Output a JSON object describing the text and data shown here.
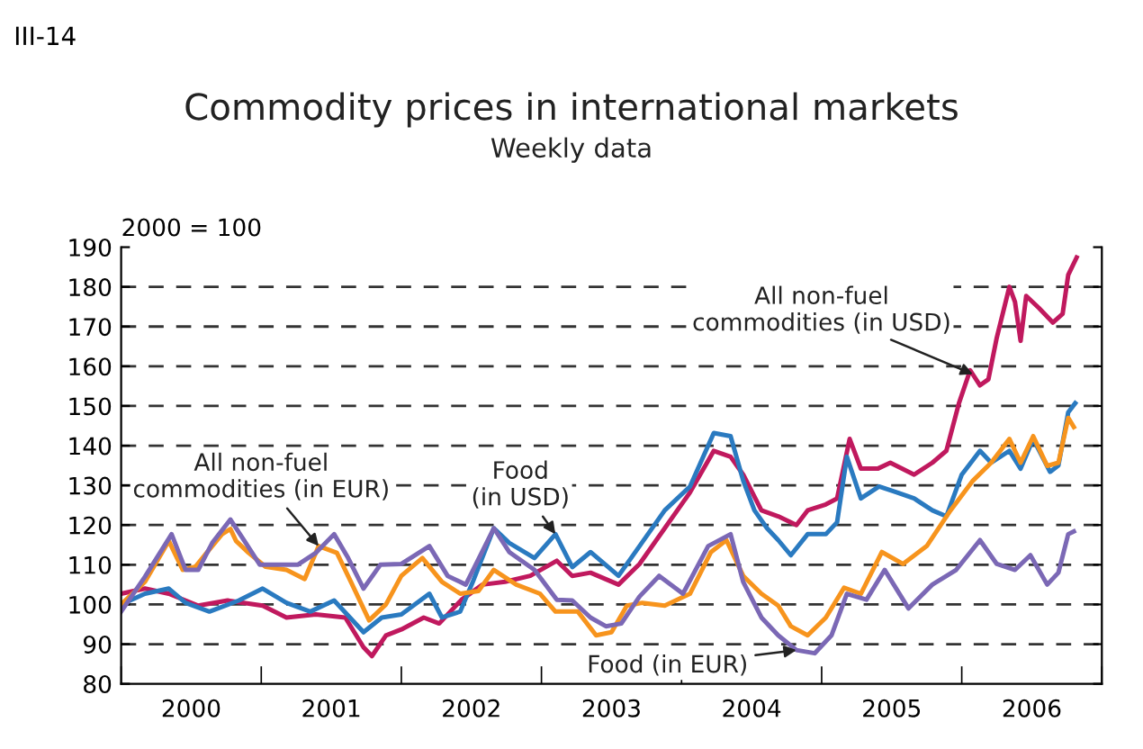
{
  "chart_data": {
    "type": "line",
    "title": "Commodity prices in international markets",
    "subtitle": "Weekly data",
    "ylabel": "2000 = 100",
    "xlim": [
      2000,
      2007
    ],
    "ylim": [
      80,
      190
    ],
    "yticks": [
      80,
      90,
      100,
      110,
      120,
      130,
      140,
      150,
      160,
      170,
      180,
      190
    ],
    "xticks": [
      {
        "value": 2000,
        "label": null
      },
      {
        "value": 2000.5,
        "label": "2000"
      },
      {
        "value": 2001,
        "label": null
      },
      {
        "value": 2001.5,
        "label": "2001"
      },
      {
        "value": 2002,
        "label": null
      },
      {
        "value": 2002.5,
        "label": "2002"
      },
      {
        "value": 2003,
        "label": null
      },
      {
        "value": 2003.5,
        "label": "2003"
      },
      {
        "value": 2004,
        "label": null
      },
      {
        "value": 2004.5,
        "label": "2004"
      },
      {
        "value": 2005,
        "label": null
      },
      {
        "value": 2005.5,
        "label": "2005"
      },
      {
        "value": 2006,
        "label": null
      },
      {
        "value": 2006.5,
        "label": "2006"
      },
      {
        "value": 2007,
        "label": null
      }
    ],
    "grid": "y",
    "legend": false,
    "line_style": "solid",
    "series": [
      {
        "color": "#c0195e",
        "x": [
          2000.0,
          2000.17,
          2000.34,
          2000.55,
          2000.76,
          2001.01,
          2001.18,
          2001.39,
          2001.6,
          2001.73,
          2001.79,
          2001.89,
          2002.0,
          2002.16,
          2002.27,
          2002.43,
          2002.58,
          2002.74,
          2002.92,
          2003.11,
          2003.22,
          2003.35,
          2003.55,
          2003.7,
          2003.88,
          2004.06,
          2004.23,
          2004.35,
          2004.44,
          2004.57,
          2004.69,
          2004.82,
          2004.9,
          2005.03,
          2005.11,
          2005.2,
          2005.28,
          2005.4,
          2005.49,
          2005.66,
          2005.79,
          2005.89,
          2005.98,
          2006.06,
          2006.13,
          2006.19,
          2006.25,
          2006.34,
          2006.38,
          2006.42,
          2006.46,
          2006.55,
          2006.65,
          2006.72,
          2006.76,
          2006.82
        ],
        "values": [
          102.7,
          104,
          102.7,
          99.7,
          101,
          99.7,
          96.7,
          97.5,
          96.7,
          89.2,
          87,
          92.2,
          93.7,
          96.7,
          95.2,
          101.2,
          105,
          105.7,
          107.2,
          111,
          107.2,
          108,
          105,
          110.2,
          119.2,
          128.2,
          138.7,
          137.2,
          132.7,
          123.7,
          122.2,
          120,
          123.7,
          125.2,
          126.7,
          141.7,
          134.2,
          134.2,
          135.7,
          132.7,
          135.7,
          138.7,
          150.7,
          159,
          155.2,
          156.7,
          167.2,
          180,
          176.2,
          166.4,
          177.7,
          174.7,
          171,
          173.2,
          183,
          187.4
        ]
      },
      {
        "color": "#2a7ac0",
        "x": [
          2000.0,
          2000.17,
          2000.34,
          2000.46,
          2000.63,
          2000.84,
          2001.01,
          2001.18,
          2001.35,
          2001.52,
          2001.73,
          2001.86,
          2002.0,
          2002.2,
          2002.29,
          2002.42,
          2002.51,
          2002.66,
          2002.77,
          2002.95,
          2003.1,
          2003.22,
          2003.35,
          2003.55,
          2003.7,
          2003.88,
          2004.06,
          2004.23,
          2004.35,
          2004.44,
          2004.52,
          2004.61,
          2004.69,
          2004.78,
          2004.9,
          2005.03,
          2005.11,
          2005.18,
          2005.28,
          2005.41,
          2005.54,
          2005.66,
          2005.79,
          2005.89,
          2006.0,
          2006.13,
          2006.21,
          2006.34,
          2006.42,
          2006.51,
          2006.63,
          2006.69,
          2006.76,
          2006.81
        ],
        "values": [
          100,
          102.7,
          104,
          100.4,
          98.2,
          101,
          104,
          100.4,
          98.2,
          101,
          93,
          96.7,
          97.5,
          102.7,
          96.7,
          98.2,
          105.7,
          119.2,
          115.5,
          111.7,
          117.7,
          109.4,
          113.2,
          107.2,
          114.7,
          123.7,
          129.7,
          143.2,
          142.4,
          131.2,
          123.7,
          119.2,
          116.2,
          112.4,
          117.7,
          117.7,
          120.7,
          137.2,
          126.7,
          129.7,
          128.2,
          126.7,
          123.7,
          122.2,
          132.7,
          138.7,
          135.7,
          138.7,
          134.2,
          141.7,
          133.4,
          135,
          148.4,
          150.7
        ]
      },
      {
        "color": "#f7941d",
        "x": [
          2000.0,
          2000.17,
          2000.34,
          2000.44,
          2000.53,
          2000.61,
          2000.72,
          2000.78,
          2000.82,
          2000.91,
          2001.03,
          2001.18,
          2001.31,
          2001.41,
          2001.54,
          2001.64,
          2001.77,
          2001.89,
          2002.0,
          2002.15,
          2002.29,
          2002.42,
          2002.55,
          2002.66,
          2002.82,
          2002.99,
          2003.1,
          2003.26,
          2003.39,
          2003.5,
          2003.61,
          2003.72,
          2003.88,
          2004.06,
          2004.21,
          2004.32,
          2004.44,
          2004.57,
          2004.69,
          2004.78,
          2004.9,
          2005.03,
          2005.16,
          2005.28,
          2005.43,
          2005.58,
          2005.75,
          2005.92,
          2006.08,
          2006.21,
          2006.34,
          2006.42,
          2006.51,
          2006.61,
          2006.69,
          2006.76,
          2006.8
        ],
        "values": [
          100,
          105.7,
          116,
          108.7,
          109.5,
          113,
          117.7,
          119,
          116,
          113,
          109.5,
          108.7,
          106.4,
          114.7,
          113,
          105.7,
          96,
          100,
          107.2,
          111.7,
          105.7,
          102.7,
          103.4,
          108.7,
          105,
          102.7,
          98.2,
          98.2,
          92.2,
          93,
          99.7,
          100.4,
          99.7,
          102.7,
          113.2,
          116.2,
          107.2,
          102.7,
          99.7,
          94.5,
          92.2,
          96.7,
          104.2,
          102.7,
          113.2,
          110.2,
          114.7,
          123.7,
          131.2,
          135.7,
          141.7,
          135.7,
          142.4,
          134.9,
          135.7,
          147,
          144.7
        ]
      },
      {
        "color": "#7b68b5",
        "x": [
          2000.0,
          2000.17,
          2000.36,
          2000.46,
          2000.55,
          2000.65,
          2000.78,
          2000.88,
          2000.99,
          2001.14,
          2001.26,
          2001.39,
          2001.52,
          2001.62,
          2001.73,
          2001.85,
          2002.0,
          2002.2,
          2002.33,
          2002.46,
          2002.66,
          2002.77,
          2002.95,
          2003.11,
          2003.22,
          2003.35,
          2003.46,
          2003.57,
          2003.7,
          2003.84,
          2004.01,
          2004.19,
          2004.35,
          2004.44,
          2004.57,
          2004.69,
          2004.82,
          2004.95,
          2005.07,
          2005.18,
          2005.32,
          2005.45,
          2005.62,
          2005.79,
          2005.96,
          2006.13,
          2006.25,
          2006.38,
          2006.49,
          2006.61,
          2006.69,
          2006.76,
          2006.8
        ],
        "values": [
          98.2,
          107,
          117.7,
          108.7,
          108.7,
          115.5,
          121.4,
          116,
          110,
          110,
          110,
          113,
          117.7,
          111.7,
          104,
          110,
          110.2,
          114.7,
          107.2,
          105,
          119.2,
          113.2,
          108.7,
          101.2,
          101,
          96.7,
          94.5,
          95.2,
          102,
          107.2,
          102.7,
          114.7,
          117.7,
          105.7,
          96.7,
          92.2,
          88.5,
          87.7,
          92.2,
          102.7,
          101.2,
          108.7,
          99,
          105,
          108.7,
          116.2,
          110.2,
          108.7,
          112.4,
          105,
          108,
          117.7,
          118.4
        ]
      }
    ],
    "annotations": [
      "III-14",
      {
        "text": "All non-fuel\ncommodities (in EUR)",
        "x": 2001.41,
        "y": 114.7
      },
      {
        "text": "Food\n(in USD)",
        "x": 2003.1,
        "y": 117.7
      },
      {
        "text": "All non-fuel\ncommodities (in USD)",
        "x": 2006.08,
        "y": 158
      },
      {
        "text": "Food (in EUR)",
        "x": 2004.82,
        "y": 88.5
      }
    ]
  }
}
